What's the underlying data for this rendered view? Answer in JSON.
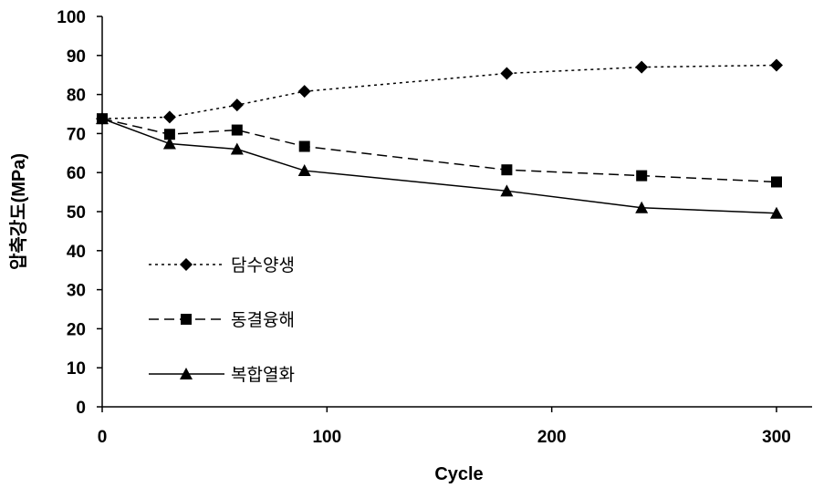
{
  "chart_data": {
    "type": "line",
    "xlabel": "Cycle",
    "ylabel": "압축강도(MPa)",
    "xlim": [
      0,
      300
    ],
    "ylim": [
      0,
      100
    ],
    "x_ticks": [
      0,
      100,
      200,
      300
    ],
    "y_ticks": [
      0,
      10,
      20,
      30,
      40,
      50,
      60,
      70,
      80,
      90,
      100
    ],
    "grid": false,
    "legend_position": "left",
    "series": [
      {
        "name": "담수양생",
        "marker": "diamond",
        "line_style": "dotted",
        "x": [
          0,
          30,
          60,
          90,
          180,
          240,
          300
        ],
        "values": [
          73.8,
          74.2,
          77.3,
          80.8,
          85.4,
          87.0,
          87.5
        ]
      },
      {
        "name": "동결융해",
        "marker": "square",
        "line_style": "dashed",
        "x": [
          0,
          30,
          60,
          90,
          180,
          240,
          300
        ],
        "values": [
          73.8,
          69.8,
          70.9,
          66.7,
          60.7,
          59.2,
          57.6
        ]
      },
      {
        "name": "복합열화",
        "marker": "triangle",
        "line_style": "solid",
        "x": [
          0,
          30,
          60,
          90,
          180,
          240,
          300
        ],
        "values": [
          73.8,
          67.4,
          66.0,
          60.5,
          55.3,
          51.0,
          49.6
        ]
      }
    ]
  }
}
